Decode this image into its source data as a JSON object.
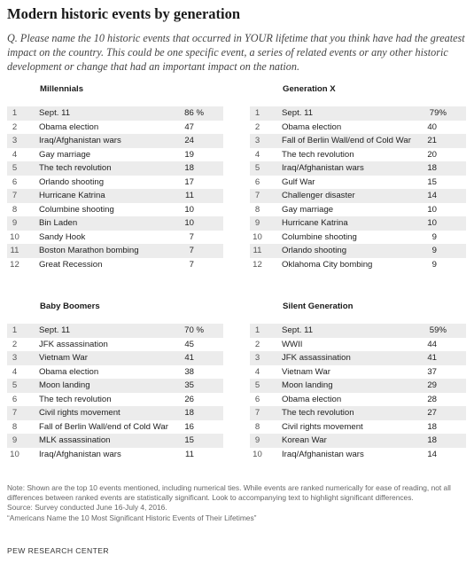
{
  "title": "Modern historic events by generation",
  "question": "Q. Please name the 10 historic events that occurred in YOUR lifetime that you think have had the greatest impact on the country. This could be one specific event, a series of related events or any other historic development or change that had an important impact on the nation.",
  "chart_data": {
    "type": "table",
    "generations": [
      {
        "name": "Millennials",
        "rows": [
          {
            "rank": "1",
            "event": "Sept. 11",
            "value": "86",
            "suffix": " %"
          },
          {
            "rank": "2",
            "event": "Obama election",
            "value": "47"
          },
          {
            "rank": "3",
            "event": "Iraq/Afghanistan wars",
            "value": "24"
          },
          {
            "rank": "4",
            "event": "Gay marriage",
            "value": "19"
          },
          {
            "rank": "5",
            "event": "The tech revolution",
            "value": "18"
          },
          {
            "rank": "6",
            "event": "Orlando shooting",
            "value": "17"
          },
          {
            "rank": "7",
            "event": "Hurricane Katrina",
            "value": "11"
          },
          {
            "rank": "8",
            "event": "Columbine shooting",
            "value": "10"
          },
          {
            "rank": "9",
            "event": "Bin Laden",
            "value": "10"
          },
          {
            "rank": "10",
            "event": "Sandy Hook",
            "value": "7"
          },
          {
            "rank": "11",
            "event": "Boston Marathon bombing",
            "value": "7"
          },
          {
            "rank": "12",
            "event": "Great Recession",
            "value": "7"
          }
        ]
      },
      {
        "name": "Generation X",
        "rows": [
          {
            "rank": "1",
            "event": "Sept. 11",
            "value": "79",
            "suffix": "%"
          },
          {
            "rank": "2",
            "event": "Obama election",
            "value": "40"
          },
          {
            "rank": "3",
            "event": "Fall of Berlin Wall/end of Cold War",
            "value": "21"
          },
          {
            "rank": "4",
            "event": "The tech revolution",
            "value": "20"
          },
          {
            "rank": "5",
            "event": "Iraq/Afghanistan wars",
            "value": "18"
          },
          {
            "rank": "6",
            "event": "Gulf War",
            "value": "15"
          },
          {
            "rank": "7",
            "event": "Challenger disaster",
            "value": "14"
          },
          {
            "rank": "8",
            "event": "Gay marriage",
            "value": "10"
          },
          {
            "rank": "9",
            "event": "Hurricane Katrina",
            "value": "10"
          },
          {
            "rank": "10",
            "event": "Columbine shooting",
            "value": "9"
          },
          {
            "rank": "11",
            "event": "Orlando shooting",
            "value": "9"
          },
          {
            "rank": "12",
            "event": "Oklahoma City bombing",
            "value": "9"
          }
        ]
      },
      {
        "name": "Baby Boomers",
        "rows": [
          {
            "rank": "1",
            "event": "Sept. 11",
            "value": "70",
            "suffix": " %"
          },
          {
            "rank": "2",
            "event": "JFK assassination",
            "value": "45"
          },
          {
            "rank": "3",
            "event": "Vietnam War",
            "value": "41"
          },
          {
            "rank": "4",
            "event": "Obama election",
            "value": "38"
          },
          {
            "rank": "5",
            "event": "Moon landing",
            "value": "35"
          },
          {
            "rank": "6",
            "event": "The tech revolution",
            "value": "26"
          },
          {
            "rank": "7",
            "event": "Civil rights movement",
            "value": "18"
          },
          {
            "rank": "8",
            "event": "Fall of Berlin Wall/end of Cold War",
            "value": "16"
          },
          {
            "rank": "9",
            "event": "MLK assassination",
            "value": "15"
          },
          {
            "rank": "10",
            "event": "Iraq/Afghanistan wars",
            "value": "11"
          }
        ]
      },
      {
        "name": "Silent Generation",
        "rows": [
          {
            "rank": "1",
            "event": "Sept. 11",
            "value": "59",
            "suffix": "%"
          },
          {
            "rank": "2",
            "event": "WWII",
            "value": "44"
          },
          {
            "rank": "3",
            "event": "JFK assassination",
            "value": "41"
          },
          {
            "rank": "4",
            "event": "Vietnam War",
            "value": "37"
          },
          {
            "rank": "5",
            "event": "Moon landing",
            "value": "29"
          },
          {
            "rank": "6",
            "event": "Obama election",
            "value": "28"
          },
          {
            "rank": "7",
            "event": "The tech revolution",
            "value": "27"
          },
          {
            "rank": "8",
            "event": "Civil rights movement",
            "value": "18"
          },
          {
            "rank": "9",
            "event": "Korean War",
            "value": "18"
          },
          {
            "rank": "10",
            "event": "Iraq/Afghanistan wars",
            "value": "14"
          }
        ]
      }
    ]
  },
  "notes": {
    "note": "Note: Shown are the top 10 events mentioned, including numerical ties. While events are ranked numerically for ease of reading, not all differences between ranked events are statistically significant. Look to accompanying text to highlight significant differences.",
    "source": "Source: Survey conducted June 16-July 4, 2016.",
    "report": "“Americans Name the 10 Most Significant Historic Events of Their Lifetimes”"
  },
  "brand": "PEW RESEARCH CENTER",
  "colors": {
    "row_shade": "#ececec",
    "title": "#1a1a1a",
    "note_text": "#666666"
  }
}
